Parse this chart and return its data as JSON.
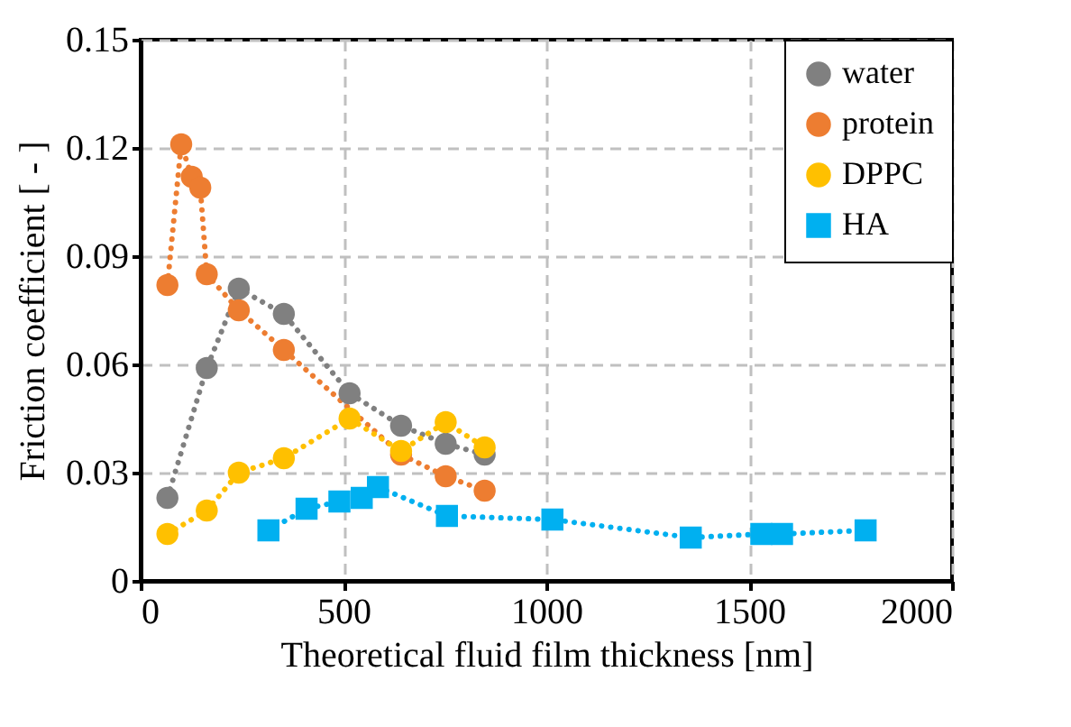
{
  "chart_data": {
    "type": "line",
    "xlabel": "Theoretical fluid film thickness [nm]",
    "ylabel": "Friction coefficient [ - ]",
    "xlim": [
      0,
      2000
    ],
    "ylim": [
      0,
      0.15
    ],
    "xticks": [
      0,
      500,
      1000,
      1500,
      2000
    ],
    "yticks": [
      0,
      0.03,
      0.06,
      0.09,
      0.12,
      0.15
    ],
    "grid": true,
    "legend": "top right",
    "line_style": "dotted",
    "series": [
      {
        "name": "water",
        "color": "#808080",
        "marker": "circle",
        "x": [
          66,
          163,
          242,
          353,
          515,
          642,
          752,
          848
        ],
        "values": [
          0.023,
          0.059,
          0.081,
          0.074,
          0.052,
          0.043,
          0.038,
          0.035
        ]
      },
      {
        "name": "protein",
        "color": "#ed7d31",
        "marker": "circle",
        "x": [
          66,
          100,
          126,
          147,
          163,
          242,
          353,
          642,
          752,
          848
        ],
        "values": [
          0.082,
          0.121,
          0.112,
          0.109,
          0.085,
          0.075,
          0.064,
          0.035,
          0.029,
          0.025
        ]
      },
      {
        "name": "DPPC",
        "color": "#ffc000",
        "marker": "circle",
        "x": [
          66,
          163,
          242,
          353,
          515,
          642,
          752,
          848
        ],
        "values": [
          0.013,
          0.0195,
          0.03,
          0.034,
          0.045,
          0.036,
          0.044,
          0.037
        ]
      },
      {
        "name": "HA",
        "color": "#00b0f0",
        "marker": "square",
        "x": [
          315,
          409,
          490,
          545,
          585,
          755,
          1015,
          1356,
          1530,
          1581,
          1787
        ],
        "values": [
          0.014,
          0.02,
          0.022,
          0.023,
          0.026,
          0.018,
          0.017,
          0.012,
          0.013,
          0.013,
          0.014
        ]
      }
    ]
  }
}
